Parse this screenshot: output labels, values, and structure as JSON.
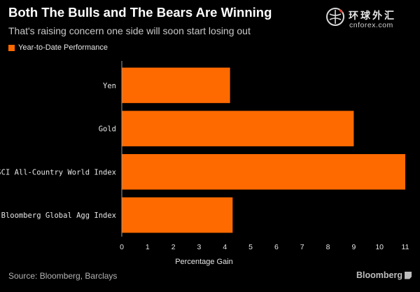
{
  "header": {
    "title": "Both The Bulls and The Bears Are Winning",
    "subtitle": "That's raising concern one side will soon start losing out"
  },
  "logo": {
    "name_cn": "环球外汇",
    "name_en": "cnforex.com"
  },
  "footer": {
    "source": "Source: Bloomberg, Barclays",
    "brand": "Bloomberg"
  },
  "colors": {
    "background": "#000000",
    "bar": "#ff6a00",
    "axis": "#9a9a9a"
  },
  "chart_data": {
    "type": "bar",
    "orientation": "horizontal",
    "categories": [
      "Yen",
      "Gold",
      "MSCI All-Country World Index",
      "Bloomberg Global Agg Index"
    ],
    "series": [
      {
        "name": "Year-to-Date Performance",
        "values": [
          4.2,
          9.0,
          11.0,
          4.3
        ]
      }
    ],
    "xlabel": "Percentage Gain",
    "ylabel": "",
    "xlim": [
      0,
      11
    ],
    "xticks": [
      0,
      1,
      2,
      3,
      4,
      5,
      6,
      7,
      8,
      9,
      10,
      11
    ],
    "legend": "top-left",
    "grid": false
  }
}
